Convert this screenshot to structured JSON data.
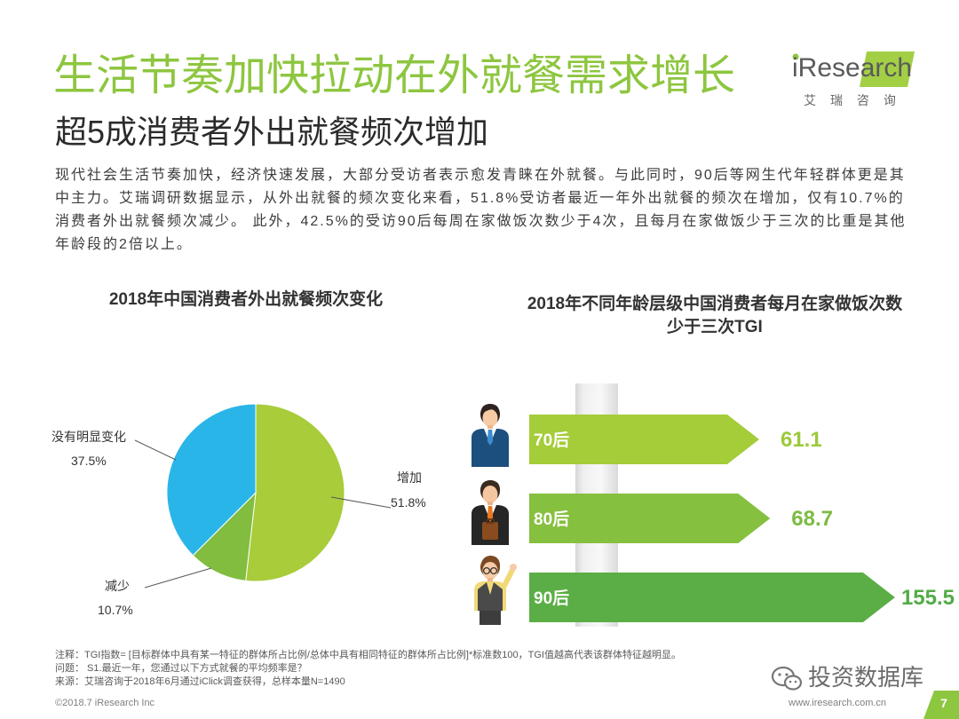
{
  "header": {
    "title": "生活节奏加快拉动在外就餐需求增长",
    "subtitle": "超5成消费者外出就餐频次增加",
    "title_color": "#8dc63f"
  },
  "logo": {
    "brand": "iResearch",
    "brand_cn": "艾 瑞 咨 询",
    "accent": "#8dc63f"
  },
  "intro": "现代社会生活节奏加快，经济快速发展，大部分受访者表示愈发青睐在外就餐。与此同时，90后等网生代年轻群体更是其中主力。艾瑞调研数据显示，从外出就餐的频次变化来看，51.8%受访者最近一年外出就餐的频次在增加，仅有10.7%的消费者外出就餐频次减少。 此外，42.5%的受访90后每周在家做饭次数少于4次，且每月在家做饭少于三次的比重是其他年龄段的2倍以上。",
  "chart_data": [
    {
      "type": "pie",
      "title": "2018年中国消费者外出就餐频次变化",
      "unit": "%",
      "slices": [
        {
          "label": "增加",
          "value": 51.8,
          "color": "#a8cc3a"
        },
        {
          "label": "减少",
          "value": 10.7,
          "color": "#82bd3f"
        },
        {
          "label": "没有明显变化",
          "value": 37.5,
          "color": "#2ab5e9"
        }
      ]
    },
    {
      "type": "bar",
      "orientation": "horizontal",
      "title": "2018年不同年龄层级中国消费者每月在家做饭次数少于三次TGI",
      "categories": [
        "70后",
        "80后",
        "90后"
      ],
      "values": [
        61.1,
        68.7,
        155.5
      ],
      "colors": [
        "#a5cc39",
        "#86c03f",
        "#5aae45"
      ],
      "value_label_colors": [
        "#9cc93b",
        "#7cbb41",
        "#52ab47"
      ]
    }
  ],
  "notes": {
    "note": "注释：TGI指数= [目标群体中具有某一特征的群体所占比例/总体中具有相同特征的群体所占比例]*标准数100，TGI值越高代表该群体特征越明显。",
    "question": "问题： S1.最近一年，您通过以下方式就餐的平均频率是？",
    "source": "来源：艾瑞咨询于2018年6月通过iClick调查获得，总样本量N=1490"
  },
  "watermark": {
    "text": "投资数据库",
    "icon": "wechat-icon"
  },
  "footer": {
    "copyright": "©2018.7 iResearch Inc",
    "website": "www.iresearch.com.cn",
    "page": "7"
  }
}
